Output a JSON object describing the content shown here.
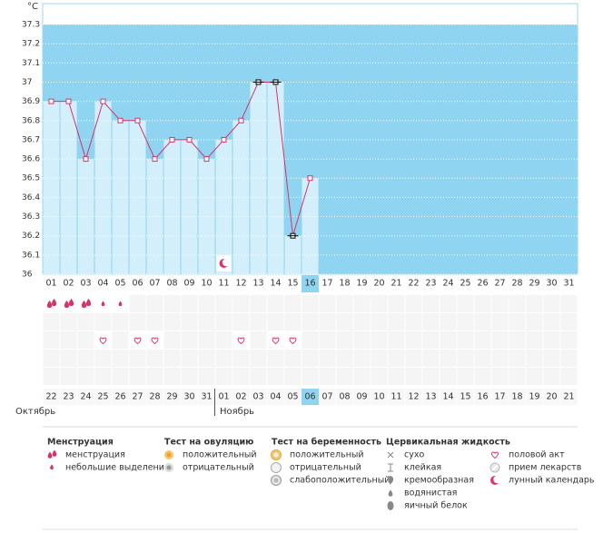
{
  "chart_data": {
    "type": "line",
    "y_label": "°C",
    "categories": [
      "01",
      "02",
      "03",
      "04",
      "05",
      "06",
      "07",
      "08",
      "09",
      "10",
      "11",
      "12",
      "13",
      "14",
      "15",
      "16",
      "17",
      "18",
      "19",
      "20",
      "21",
      "22",
      "23",
      "24",
      "25",
      "26",
      "27",
      "28",
      "29",
      "30",
      "31"
    ],
    "values": [
      36.9,
      36.9,
      36.6,
      36.9,
      36.8,
      36.8,
      36.6,
      36.7,
      36.7,
      36.6,
      36.7,
      36.8,
      37.0,
      37.0,
      36.2,
      36.5,
      null,
      null,
      null,
      null,
      null,
      null,
      null,
      null,
      null,
      null,
      null,
      null,
      null,
      null,
      null
    ],
    "ylim": [
      36,
      37.3
    ],
    "yticks": [
      36,
      36.1,
      36.2,
      36.3,
      36.4,
      36.5,
      36.6,
      36.7,
      36.8,
      36.9,
      37,
      37.1,
      37.2,
      37.3
    ],
    "color": "#d6336c",
    "highlight_points": [
      12,
      13,
      14
    ],
    "highlight_color": "#000000",
    "today_index": 15,
    "calendar_dates": [
      "22",
      "23",
      "24",
      "25",
      "26",
      "27",
      "28",
      "29",
      "30",
      "31",
      "01",
      "02",
      "03",
      "04",
      "05",
      "06",
      "07",
      "08",
      "09",
      "10",
      "11",
      "12",
      "13",
      "14",
      "15",
      "16",
      "17",
      "18",
      "19",
      "20",
      "21"
    ],
    "weekend_dates": [
      4,
      5,
      11,
      12,
      18,
      19,
      25,
      26
    ],
    "months": [
      {
        "label": "Октябрь",
        "start": 0
      },
      {
        "label": "Ноябрь",
        "start": 10
      }
    ],
    "heavy_days": [
      0,
      1,
      2
    ],
    "light_days": [
      3,
      4
    ],
    "sex_days": [
      3,
      5,
      6,
      11,
      13,
      14
    ],
    "moon_days": [
      10
    ]
  },
  "legend": [
    {
      "title": "Менструация",
      "items": [
        "менструация",
        "небольшие выделения"
      ]
    },
    {
      "title": "Тест на овуляцию",
      "items": [
        "положительный",
        "отрицательный"
      ]
    },
    {
      "title": "Тест на беременность",
      "items": [
        "положительный",
        "отрицательный",
        "слабоположительный"
      ]
    },
    {
      "title": "Цервикальная жидкость",
      "items": [
        "сухо",
        "клейкая",
        "кремообразная",
        "водянистая",
        "яичный белок"
      ]
    },
    {
      "items": [
        "половой акт",
        "прием лекарств",
        "лунный календарь"
      ]
    }
  ]
}
